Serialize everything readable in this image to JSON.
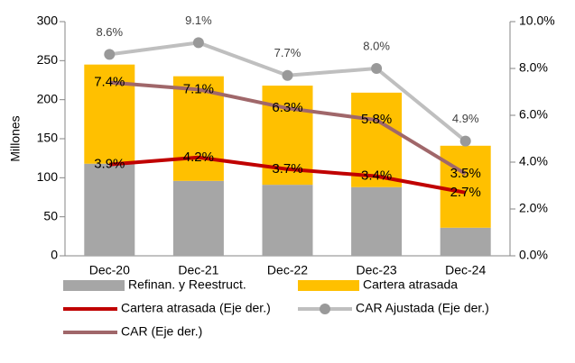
{
  "chart_data": {
    "type": "bar",
    "y_label": "Millones",
    "categories": [
      "Dec-20",
      "Dec-21",
      "Dec-22",
      "Dec-23",
      "Dec-24"
    ],
    "ylim": [
      0,
      300
    ],
    "yticks": [
      0,
      50,
      100,
      150,
      200,
      250,
      300
    ],
    "y2lim": [
      0,
      10
    ],
    "y2ticks": [
      {
        "value": 0,
        "label": "0.0%"
      },
      {
        "value": 2,
        "label": "2.0%"
      },
      {
        "value": 4,
        "label": "4.0%"
      },
      {
        "value": 6,
        "label": "6.0%"
      },
      {
        "value": 8,
        "label": "8.0%"
      },
      {
        "value": 10,
        "label": "10.0%"
      }
    ],
    "series": [
      {
        "name": "Refinan. y Reestruct.",
        "type": "bar",
        "color": "#a6a6a6",
        "values": [
          118,
          96,
          91,
          88,
          36
        ]
      },
      {
        "name": "Cartera atrasada",
        "type": "bar",
        "color": "#ffc000",
        "values": [
          127,
          134,
          127,
          121,
          105
        ]
      },
      {
        "name": "Cartera atrasada (Eje der.)",
        "type": "line",
        "axis": "y2",
        "color": "#c00000",
        "values": [
          3.9,
          4.2,
          3.7,
          3.4,
          2.7
        ],
        "value_labels": [
          "3.9%",
          "4.2%",
          "3.7%",
          "3.4%",
          "2.7%"
        ]
      },
      {
        "name": "CAR Ajustada (Eje der.)",
        "type": "line",
        "axis": "y2",
        "color": "#bfbfbf",
        "marker": "circle",
        "values": [
          8.6,
          9.1,
          7.7,
          8.0,
          4.9
        ],
        "value_labels": [
          "8.6%",
          "9.1%",
          "7.7%",
          "8.0%",
          "4.9%"
        ]
      },
      {
        "name": "CAR (Eje der.)",
        "type": "line",
        "axis": "y2",
        "color": "#a0676a",
        "values": [
          7.4,
          7.1,
          6.3,
          5.8,
          3.5
        ],
        "value_labels": [
          "7.4%",
          "7.1%",
          "6.3%",
          "5.8%",
          "3.5%"
        ]
      }
    ]
  }
}
